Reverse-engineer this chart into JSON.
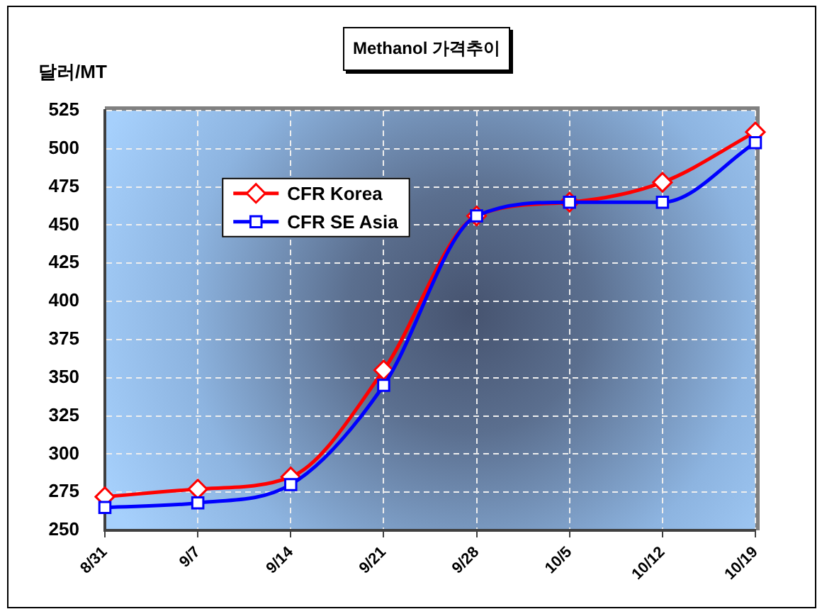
{
  "chart_data": {
    "type": "line",
    "title": "Methanol 가격추이",
    "ylabel": "달러/MT",
    "categories": [
      "8/31",
      "9/7",
      "9/14",
      "9/21",
      "9/28",
      "10/5",
      "10/12",
      "10/19"
    ],
    "series": [
      {
        "name": "CFR Korea",
        "color": "#ff0000",
        "marker": "diamond",
        "values": [
          272,
          277,
          285,
          355,
          456,
          465,
          478,
          511
        ]
      },
      {
        "name": "CFR SE Asia",
        "color": "#0000ff",
        "marker": "square",
        "values": [
          265,
          268,
          280,
          345,
          456,
          465,
          465,
          504
        ]
      }
    ],
    "ylim": [
      250,
      525
    ],
    "yticks": [
      250,
      275,
      300,
      325,
      350,
      375,
      400,
      425,
      450,
      475,
      500,
      525
    ],
    "grid": true,
    "legend": "top left"
  }
}
